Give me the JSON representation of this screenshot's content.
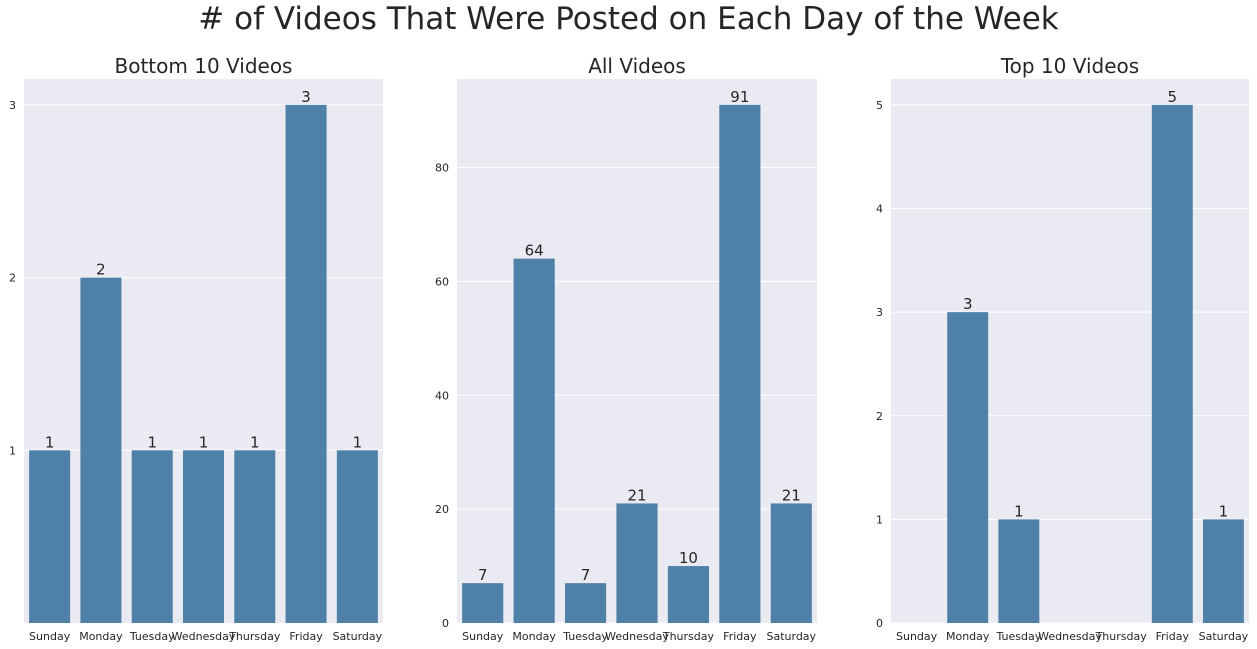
{
  "suptitle": "# of Videos That Were Posted on Each Day of the Week",
  "colors": {
    "bar": "#4f81a8",
    "plot_bg": "#eaeaf2",
    "grid": "#ffffff",
    "text": "#262626"
  },
  "chart_data": [
    {
      "type": "bar",
      "title": "Bottom 10 Videos",
      "categories": [
        "Sunday",
        "Monday",
        "Tuesday",
        "Wednesday",
        "Thursday",
        "Friday",
        "Saturday"
      ],
      "values": [
        1,
        2,
        1,
        1,
        1,
        3,
        1
      ],
      "data_labels": [
        "1",
        "2",
        "1",
        "1",
        "1",
        "3",
        "1"
      ],
      "yticks": [
        1,
        2,
        3
      ],
      "ylim": [
        0,
        3.15
      ],
      "grid": true
    },
    {
      "type": "bar",
      "title": "All Videos",
      "categories": [
        "Sunday",
        "Monday",
        "Tuesday",
        "Wednesday",
        "Thursday",
        "Friday",
        "Saturday"
      ],
      "values": [
        7,
        64,
        7,
        21,
        10,
        91,
        21
      ],
      "data_labels": [
        "7",
        "64",
        "7",
        "21",
        "10",
        "91",
        "21"
      ],
      "yticks": [
        0,
        20,
        40,
        60,
        80
      ],
      "ylim": [
        0,
        95.55
      ],
      "grid": true
    },
    {
      "type": "bar",
      "title": "Top 10 Videos",
      "categories": [
        "Sunday",
        "Monday",
        "Tuesday",
        "Wednesday",
        "Thursday",
        "Friday",
        "Saturday"
      ],
      "values": [
        0,
        3,
        1,
        0,
        0,
        5,
        1
      ],
      "data_labels": [
        "",
        "3",
        "1",
        "",
        "",
        "5",
        "1"
      ],
      "yticks": [
        0,
        1,
        2,
        3,
        4,
        5
      ],
      "ylim": [
        0,
        5.25
      ],
      "grid": true
    }
  ]
}
